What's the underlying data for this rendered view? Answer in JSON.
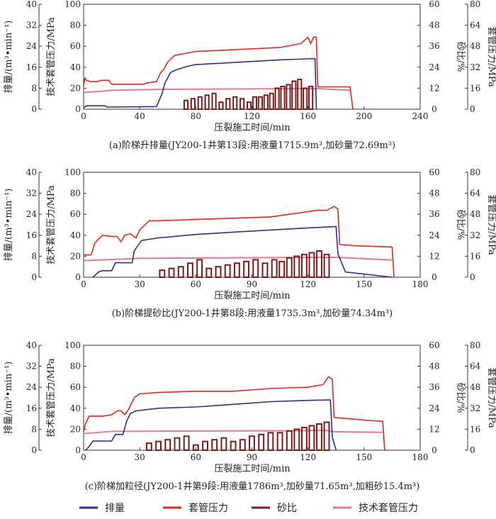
{
  "legend": {
    "items": [
      {
        "name": "排量",
        "color": "#2b2e8c"
      },
      {
        "name": "套管压力",
        "color": "#e0261f"
      },
      {
        "name": "砂比",
        "color": "#7a1a1a"
      },
      {
        "name": "技术套管压力",
        "color": "#e87a8e"
      }
    ]
  },
  "axis_labels": {
    "xlabel": "压裂施工时间/min",
    "ylabel_rate": "排量/(m³•min⁻¹)",
    "ylabel_pressure": "技术套管压力/MPa",
    "ylabel_sand": "砂比/%",
    "ylabel_casing": "套管压力/MPa"
  },
  "chart_data": [
    {
      "type": "line",
      "title": "(a)阶梯升排量(JY200-1井第13段:用液量1715.9m³,加砂量72.69m³)",
      "xlabel": "压裂施工时间/min",
      "xlim": [
        0,
        240
      ],
      "xticks": [
        0,
        40,
        80,
        120,
        160,
        200,
        240
      ],
      "ylim_rate": [
        0,
        40
      ],
      "yticks_rate": [
        0,
        8,
        16,
        24,
        32,
        40
      ],
      "ylim_pressure": [
        0,
        100
      ],
      "yticks_pressure": [
        0,
        20,
        40,
        60,
        80,
        100
      ],
      "ylim_sand": [
        0,
        60
      ],
      "yticks_sand": [
        0,
        12,
        24,
        36,
        48,
        60
      ],
      "ylim_casing": [
        0,
        80
      ],
      "yticks_casing": [
        0,
        16,
        32,
        48,
        64,
        80
      ],
      "series": [
        {
          "name": "排量",
          "axis": "rate",
          "color": "#2b2e8c",
          "x": [
            0,
            2,
            15,
            17,
            52,
            56,
            58,
            62,
            66,
            75,
            80,
            100,
            120,
            140,
            160,
            165,
            166
          ],
          "y": [
            0.5,
            1.3,
            1.3,
            0.8,
            1.0,
            6,
            10,
            14,
            15,
            16.5,
            17,
            17.6,
            18.2,
            18.8,
            19.2,
            19.3,
            0
          ]
        },
        {
          "name": "套管压力",
          "axis": "casing",
          "color": "#e0261f",
          "x": [
            0,
            1,
            2,
            5,
            10,
            12,
            18,
            20,
            30,
            43,
            45,
            52,
            55,
            57,
            58,
            60,
            65,
            80,
            100,
            120,
            140,
            155,
            160,
            162,
            164,
            166,
            167,
            190,
            192
          ],
          "y": [
            18,
            24,
            22,
            21,
            21,
            22,
            22,
            19,
            19,
            19,
            20,
            21,
            28,
            30,
            32,
            36,
            41,
            44,
            45,
            46,
            47,
            50,
            55,
            50,
            55,
            55,
            17,
            17,
            0
          ]
        },
        {
          "name": "技术套管压力",
          "axis": "sand",
          "color": "#e87a8e",
          "x": [
            0,
            20,
            60,
            120,
            166,
            190
          ],
          "y": [
            9.5,
            10.8,
            11.4,
            11.6,
            11.8,
            10.8
          ]
        },
        {
          "name": "砂比",
          "axis": "sand",
          "type": "bar",
          "color": "#7a1a1a",
          "x": [
            73,
            78,
            83,
            88,
            93,
            98,
            103,
            108,
            113,
            118,
            122,
            126,
            130,
            134,
            138,
            142,
            146,
            150,
            154,
            158,
            162
          ],
          "y": [
            5,
            6,
            7,
            8,
            9,
            4,
            6,
            7,
            6,
            4,
            7,
            7,
            8,
            9,
            12,
            13,
            14,
            16,
            17,
            12,
            13
          ]
        }
      ]
    },
    {
      "type": "line",
      "title": "(b)阶梯提砂比(JY200-1井第8段:用液量1735.3m³,加砂量74.34m³)",
      "xlabel": "压裂施工时间/min",
      "xlim": [
        0,
        180
      ],
      "xticks": [
        0,
        30,
        60,
        90,
        120,
        150,
        180
      ],
      "ylim_rate": [
        0,
        40
      ],
      "yticks_rate": [
        0,
        8,
        16,
        24,
        32,
        40
      ],
      "ylim_pressure": [
        0,
        100
      ],
      "yticks_pressure": [
        0,
        20,
        40,
        60,
        80,
        100
      ],
      "ylim_sand": [
        0,
        60
      ],
      "yticks_sand": [
        0,
        12,
        24,
        36,
        48,
        60
      ],
      "ylim_casing": [
        0,
        80
      ],
      "yticks_casing": [
        0,
        16,
        32,
        48,
        64,
        80
      ],
      "series": [
        {
          "name": "排量",
          "axis": "rate",
          "color": "#2b2e8c",
          "x": [
            5,
            8,
            10,
            15,
            17,
            26,
            27,
            29,
            31,
            40,
            60,
            80,
            100,
            120,
            135,
            136,
            140,
            165
          ],
          "y": [
            0,
            2,
            2.5,
            2.5,
            5.5,
            5.5,
            10,
            12,
            14,
            15,
            16.3,
            17.2,
            18,
            18.8,
            19.3,
            9,
            2,
            0
          ]
        },
        {
          "name": "套管压力",
          "axis": "casing",
          "color": "#e0261f",
          "x": [
            0,
            4,
            6,
            10,
            15,
            18,
            20,
            22,
            25,
            28,
            30,
            35,
            40,
            60,
            80,
            100,
            115,
            125,
            130,
            134,
            136,
            137,
            145,
            165,
            166
          ],
          "y": [
            17,
            17,
            26,
            32,
            31,
            31,
            27,
            32,
            33,
            30,
            36,
            43,
            43,
            44,
            45,
            46,
            49,
            51,
            51,
            54,
            52,
            25,
            24,
            23,
            0
          ]
        },
        {
          "name": "技术套管压力",
          "axis": "sand",
          "color": "#e87a8e",
          "x": [
            0,
            30,
            60,
            100,
            135,
            165
          ],
          "y": [
            9.5,
            10.8,
            11,
            11.2,
            11.4,
            9.8
          ]
        },
        {
          "name": "砂比",
          "axis": "sand",
          "type": "bar",
          "color": "#7a1a1a",
          "x": [
            42,
            47,
            52,
            57,
            62,
            67,
            72,
            77,
            82,
            87,
            92,
            97,
            102,
            106,
            110,
            114,
            118,
            122,
            126,
            130
          ],
          "y": [
            4,
            5,
            6,
            8,
            10,
            5,
            6,
            7,
            8,
            9,
            10,
            8,
            10,
            9,
            11,
            12,
            13,
            14,
            15,
            13
          ]
        }
      ]
    },
    {
      "type": "line",
      "title": "(c)阶梯加粒径(JY200-1井第9段:用液量1786m³,加砂量71.65m³,加粗砂15.4m³)",
      "xlabel": "压裂施工时间/min",
      "xlim": [
        0,
        180
      ],
      "xticks": [
        0,
        30,
        60,
        90,
        120,
        150,
        180
      ],
      "ylim_rate": [
        0,
        40
      ],
      "yticks_rate": [
        0,
        8,
        16,
        24,
        32,
        40
      ],
      "ylim_pressure": [
        0,
        100
      ],
      "yticks_pressure": [
        0,
        20,
        40,
        60,
        80,
        100
      ],
      "ylim_sand": [
        0,
        60
      ],
      "yticks_sand": [
        0,
        12,
        24,
        36,
        48,
        60
      ],
      "ylim_casing": [
        0,
        80
      ],
      "yticks_casing": [
        0,
        16,
        32,
        48,
        64,
        80
      ],
      "series": [
        {
          "name": "排量",
          "axis": "rate",
          "color": "#2b2e8c",
          "x": [
            1,
            3,
            5,
            15,
            17,
            21,
            23,
            25,
            28,
            40,
            60,
            80,
            100,
            120,
            132,
            133,
            135
          ],
          "y": [
            0,
            1.5,
            3.5,
            3.5,
            6,
            6,
            11,
            14,
            15,
            16,
            16.5,
            17.5,
            18.5,
            19,
            19.2,
            5,
            0
          ]
        },
        {
          "name": "套管压力",
          "axis": "casing",
          "color": "#e0261f",
          "x": [
            0,
            1,
            3,
            10,
            15,
            18,
            20,
            22,
            24,
            27,
            30,
            40,
            60,
            80,
            100,
            120,
            128,
            131,
            133,
            134,
            150,
            160,
            161
          ],
          "y": [
            14,
            20,
            26,
            26,
            27,
            30,
            30,
            27,
            31,
            40,
            43,
            44,
            45,
            45,
            47,
            48,
            50,
            56,
            54,
            25,
            23,
            22,
            0
          ]
        },
        {
          "name": "技术套管压力",
          "axis": "sand",
          "color": "#e87a8e",
          "x": [
            0,
            15,
            60,
            100,
            130,
            133,
            160
          ],
          "y": [
            9.5,
            10.8,
            11,
            11.1,
            11.3,
            10.6,
            10.2
          ]
        },
        {
          "name": "砂比",
          "axis": "sand",
          "type": "bar",
          "color": "#7a1a1a",
          "x": [
            35,
            40,
            45,
            50,
            55,
            60,
            65,
            70,
            75,
            80,
            85,
            90,
            95,
            100,
            105,
            110,
            114,
            118,
            122,
            126,
            130
          ],
          "y": [
            4,
            5,
            6,
            7,
            8,
            3,
            5,
            6,
            7,
            5,
            6,
            8,
            9,
            10,
            10,
            11,
            12,
            13,
            14,
            15,
            16
          ]
        }
      ]
    }
  ]
}
